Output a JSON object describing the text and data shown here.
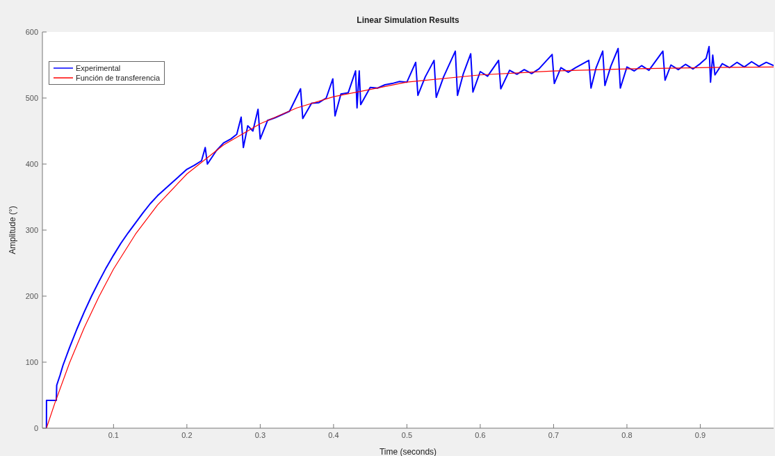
{
  "chart_data": {
    "type": "line",
    "title": "Linear Simulation Results",
    "xlabel": "Time (seconds)",
    "ylabel": "Amplitude  (°)",
    "xlim": [
      0.003,
      1.0
    ],
    "xticks": [
      0.1,
      0.2,
      0.3,
      0.4,
      0.5,
      0.6,
      0.7,
      0.8,
      0.9
    ],
    "ylim": [
      0,
      600
    ],
    "yticks": [
      0,
      100,
      200,
      300,
      400,
      500,
      600
    ],
    "grid": false,
    "legend": "top left",
    "marker": "none",
    "line_style": "solid",
    "series": [
      {
        "name": "Experimental",
        "color": "#0000ff",
        "x": [
          0.0085,
          0.0086,
          0.022,
          0.0225,
          0.027,
          0.031,
          0.036,
          0.04,
          0.05,
          0.06,
          0.07,
          0.08,
          0.09,
          0.1,
          0.11,
          0.12,
          0.13,
          0.14,
          0.15,
          0.16,
          0.17,
          0.18,
          0.19,
          0.2,
          0.21,
          0.22,
          0.225,
          0.228,
          0.24,
          0.25,
          0.26,
          0.268,
          0.274,
          0.277,
          0.283,
          0.29,
          0.297,
          0.3,
          0.31,
          0.32,
          0.33,
          0.34,
          0.355,
          0.358,
          0.37,
          0.38,
          0.39,
          0.399,
          0.402,
          0.41,
          0.42,
          0.43,
          0.432,
          0.435,
          0.437,
          0.45,
          0.46,
          0.47,
          0.48,
          0.49,
          0.5,
          0.512,
          0.515,
          0.525,
          0.537,
          0.54,
          0.55,
          0.566,
          0.569,
          0.577,
          0.587,
          0.59,
          0.6,
          0.61,
          0.625,
          0.628,
          0.64,
          0.65,
          0.66,
          0.67,
          0.68,
          0.698,
          0.701,
          0.71,
          0.72,
          0.73,
          0.748,
          0.751,
          0.758,
          0.767,
          0.77,
          0.778,
          0.788,
          0.791,
          0.8,
          0.81,
          0.82,
          0.83,
          0.849,
          0.852,
          0.86,
          0.87,
          0.88,
          0.89,
          0.9,
          0.908,
          0.912,
          0.914,
          0.917,
          0.92,
          0.93,
          0.94,
          0.95,
          0.96,
          0.97,
          0.98,
          0.99,
          1.0
        ],
        "values": [
          0,
          42,
          42,
          65,
          80,
          95,
          110,
          122,
          150,
          176,
          200,
          222,
          243,
          262,
          280,
          296,
          311,
          326,
          340,
          352,
          362,
          372,
          382,
          392,
          398,
          405,
          425,
          400,
          420,
          432,
          438,
          445,
          471,
          425,
          458,
          450,
          483,
          438,
          466,
          470,
          475,
          480,
          514,
          469,
          492,
          493,
          500,
          529,
          473,
          506,
          508,
          541,
          485,
          541,
          490,
          516,
          515,
          520,
          522,
          525,
          524,
          554,
          504,
          532,
          557,
          501,
          532,
          571,
          504,
          537,
          567,
          509,
          540,
          533,
          557,
          514,
          542,
          536,
          543,
          537,
          544,
          566,
          522,
          546,
          539,
          546,
          557,
          515,
          546,
          571,
          519,
          548,
          575,
          515,
          547,
          541,
          549,
          542,
          571,
          527,
          550,
          543,
          551,
          544,
          552,
          560,
          578,
          524,
          565,
          535,
          552,
          546,
          554,
          547,
          555,
          548,
          554,
          549
        ]
      },
      {
        "name": "Función de transferencia",
        "color": "#ff0000",
        "x": [
          0.0085,
          0.02,
          0.04,
          0.06,
          0.08,
          0.1,
          0.13,
          0.16,
          0.2,
          0.25,
          0.3,
          0.35,
          0.4,
          0.5,
          0.6,
          0.7,
          0.8,
          0.9,
          1.0
        ],
        "values": [
          0,
          38,
          99,
          152,
          199,
          241,
          294,
          338,
          385,
          429,
          461,
          485,
          502,
          524,
          535,
          541,
          544,
          546,
          547
        ]
      }
    ]
  }
}
